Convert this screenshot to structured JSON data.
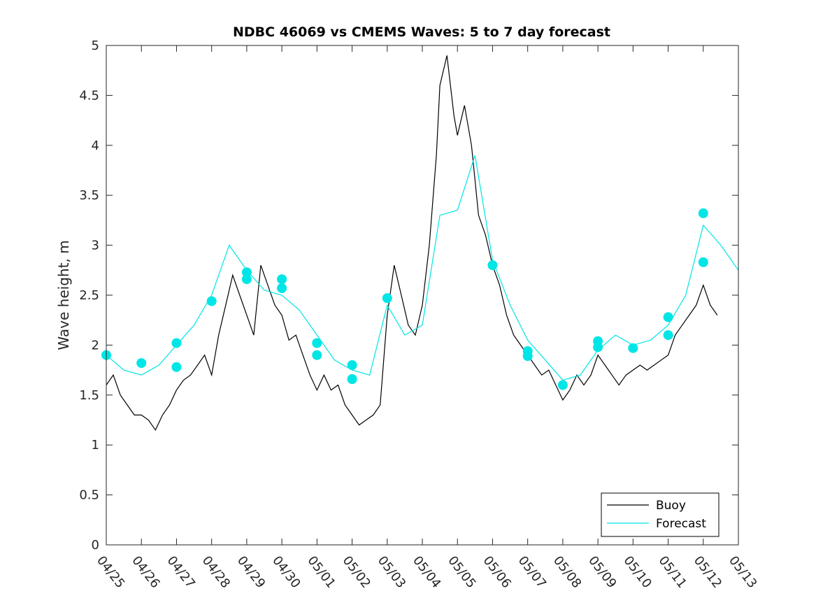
{
  "chart_data": {
    "type": "line",
    "title": "NDBC 46069 vs CMEMS Waves: 5 to 7 day forecast",
    "xlabel": "",
    "ylabel": "Wave height, m",
    "xlim": [
      "04/25",
      "05/13"
    ],
    "ylim": [
      0,
      5
    ],
    "x_ticks": [
      "04/25",
      "04/26",
      "04/27",
      "04/28",
      "04/29",
      "04/30",
      "05/01",
      "05/02",
      "05/03",
      "05/04",
      "05/05",
      "05/06",
      "05/07",
      "05/08",
      "05/09",
      "05/10",
      "05/11",
      "05/12",
      "05/13"
    ],
    "y_ticks": [
      "0",
      "0.5",
      "1",
      "1.5",
      "2",
      "2.5",
      "3",
      "3.5",
      "4",
      "4.5",
      "5"
    ],
    "x_unit": "day",
    "grid": false,
    "legend": {
      "position": "bottom-right",
      "entries": [
        {
          "label": "Buoy",
          "color": "#000000"
        },
        {
          "label": "Forecast",
          "color": "#00e5e5"
        }
      ]
    },
    "series": [
      {
        "name": "Buoy",
        "color": "#000000",
        "x": [
          0,
          0.2,
          0.4,
          0.6,
          0.8,
          1.0,
          1.2,
          1.4,
          1.6,
          1.8,
          2.0,
          2.2,
          2.4,
          2.6,
          2.8,
          3.0,
          3.2,
          3.4,
          3.6,
          3.8,
          4.0,
          4.2,
          4.4,
          4.6,
          4.8,
          5.0,
          5.2,
          5.4,
          5.6,
          5.8,
          6.0,
          6.2,
          6.4,
          6.6,
          6.8,
          7.0,
          7.2,
          7.4,
          7.6,
          7.8,
          8.0,
          8.2,
          8.4,
          8.6,
          8.8,
          9.0,
          9.2,
          9.4,
          9.5,
          9.7,
          9.9,
          10.0,
          10.2,
          10.4,
          10.6,
          10.8,
          11.0,
          11.2,
          11.4,
          11.6,
          11.8,
          12.0,
          12.2,
          12.4,
          12.6,
          12.8,
          13.0,
          13.2,
          13.4,
          13.6,
          13.8,
          14.0,
          14.2,
          14.4,
          14.6,
          14.8,
          15.0,
          15.2,
          15.4,
          15.6,
          15.8,
          16.0,
          16.2,
          16.4,
          16.6,
          16.8,
          17.0,
          17.2,
          17.4
        ],
        "values": [
          1.6,
          1.7,
          1.5,
          1.4,
          1.3,
          1.3,
          1.25,
          1.15,
          1.3,
          1.4,
          1.55,
          1.65,
          1.7,
          1.8,
          1.9,
          1.7,
          2.1,
          2.4,
          2.7,
          2.5,
          2.3,
          2.1,
          2.8,
          2.6,
          2.4,
          2.3,
          2.05,
          2.1,
          1.9,
          1.7,
          1.55,
          1.7,
          1.55,
          1.6,
          1.4,
          1.3,
          1.2,
          1.25,
          1.3,
          1.4,
          2.3,
          2.8,
          2.5,
          2.2,
          2.1,
          2.4,
          3.0,
          3.9,
          4.6,
          4.9,
          4.3,
          4.1,
          4.4,
          4.0,
          3.3,
          3.1,
          2.8,
          2.6,
          2.3,
          2.1,
          2.0,
          1.9,
          1.8,
          1.7,
          1.75,
          1.6,
          1.45,
          1.55,
          1.7,
          1.6,
          1.7,
          1.9,
          1.8,
          1.7,
          1.6,
          1.7,
          1.75,
          1.8,
          1.75,
          1.8,
          1.85,
          1.9,
          2.1,
          2.2,
          2.3,
          2.4,
          2.6,
          2.4,
          2.3
        ]
      },
      {
        "name": "Forecast",
        "color": "#00e5e5",
        "x": [
          0,
          0.5,
          1.0,
          1.5,
          2.0,
          2.5,
          3.0,
          3.5,
          4.0,
          4.5,
          5.0,
          5.5,
          6.0,
          6.5,
          7.0,
          7.5,
          8.0,
          8.5,
          9.0,
          9.5,
          10.0,
          10.5,
          11.0,
          11.5,
          12.0,
          12.5,
          13.0,
          13.5,
          14.0,
          14.5,
          15.0,
          15.5,
          16.0,
          16.5,
          17.0,
          17.5,
          18.0
        ],
        "values": [
          1.9,
          1.75,
          1.7,
          1.8,
          2.0,
          2.2,
          2.5,
          3.0,
          2.75,
          2.55,
          2.5,
          2.35,
          2.1,
          1.85,
          1.75,
          1.7,
          2.4,
          2.1,
          2.2,
          3.3,
          3.35,
          3.9,
          2.85,
          2.4,
          2.05,
          1.85,
          1.65,
          1.7,
          1.95,
          2.1,
          2.0,
          2.05,
          2.2,
          2.5,
          3.2,
          3.0,
          2.75
        ]
      }
    ],
    "markers": {
      "series": "Forecast",
      "x": [
        0,
        1,
        2,
        2,
        3,
        4,
        4,
        5,
        5,
        6,
        6,
        7,
        7,
        8,
        11,
        12,
        12,
        13,
        14,
        14,
        15,
        16,
        16,
        17,
        17
      ],
      "values": [
        1.9,
        1.82,
        2.02,
        1.78,
        2.44,
        2.73,
        2.66,
        2.66,
        2.57,
        2.02,
        1.9,
        1.8,
        1.66,
        2.47,
        2.8,
        1.94,
        1.89,
        1.6,
        2.04,
        1.98,
        1.97,
        2.28,
        2.1,
        3.32,
        2.83
      ]
    }
  }
}
